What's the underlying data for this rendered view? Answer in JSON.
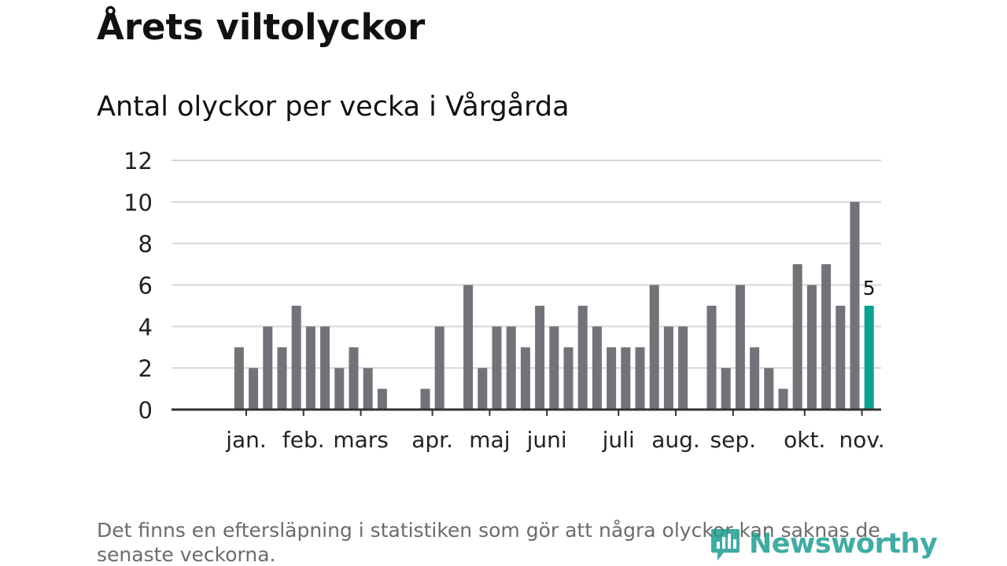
{
  "title": "Årets viltolyckor",
  "subtitle": "Antal olyckor per vecka i Vårgårda",
  "footnote": "Det finns en eftersläpning i statistiken som gör att några olyckor kan saknas de senaste veckorna.",
  "brand": {
    "name": "Newsworthy",
    "icon": "bar-chart-speech-bubble-icon",
    "color": "#1f9e93"
  },
  "colors": {
    "bar": "#737278",
    "highlight": "#0aa293",
    "grid": "#d6d6d6",
    "axis": "#333333",
    "text": "#222222"
  },
  "chart_data": {
    "type": "bar",
    "title": "Antal olyckor per vecka i Vårgårda",
    "xlabel": "",
    "ylabel": "",
    "ylim": [
      0,
      12
    ],
    "yticks": [
      0,
      2,
      4,
      6,
      8,
      10,
      12
    ],
    "grid": true,
    "legend": "none",
    "weeks": 50,
    "values": [
      null,
      null,
      3,
      2,
      4,
      3,
      5,
      4,
      4,
      2,
      3,
      2,
      1,
      null,
      null,
      1,
      4,
      null,
      6,
      2,
      4,
      4,
      3,
      5,
      4,
      3,
      5,
      4,
      3,
      3,
      3,
      6,
      4,
      4,
      null,
      5,
      2,
      6,
      3,
      2,
      1,
      7,
      6,
      7,
      5,
      10,
      5
    ],
    "highlight_index": 46,
    "highlight_label": "5",
    "month_labels": [
      {
        "label": "jan.",
        "pos": 2.5
      },
      {
        "label": "feb.",
        "pos": 6.5
      },
      {
        "label": "mars",
        "pos": 10.5
      },
      {
        "label": "apr.",
        "pos": 15.5
      },
      {
        "label": "maj",
        "pos": 19.5
      },
      {
        "label": "juni",
        "pos": 23.5
      },
      {
        "label": "juli",
        "pos": 28.5
      },
      {
        "label": "aug.",
        "pos": 32.5
      },
      {
        "label": "sep.",
        "pos": 36.5
      },
      {
        "label": "okt.",
        "pos": 41.5
      },
      {
        "label": "nov.",
        "pos": 45.5
      }
    ]
  }
}
